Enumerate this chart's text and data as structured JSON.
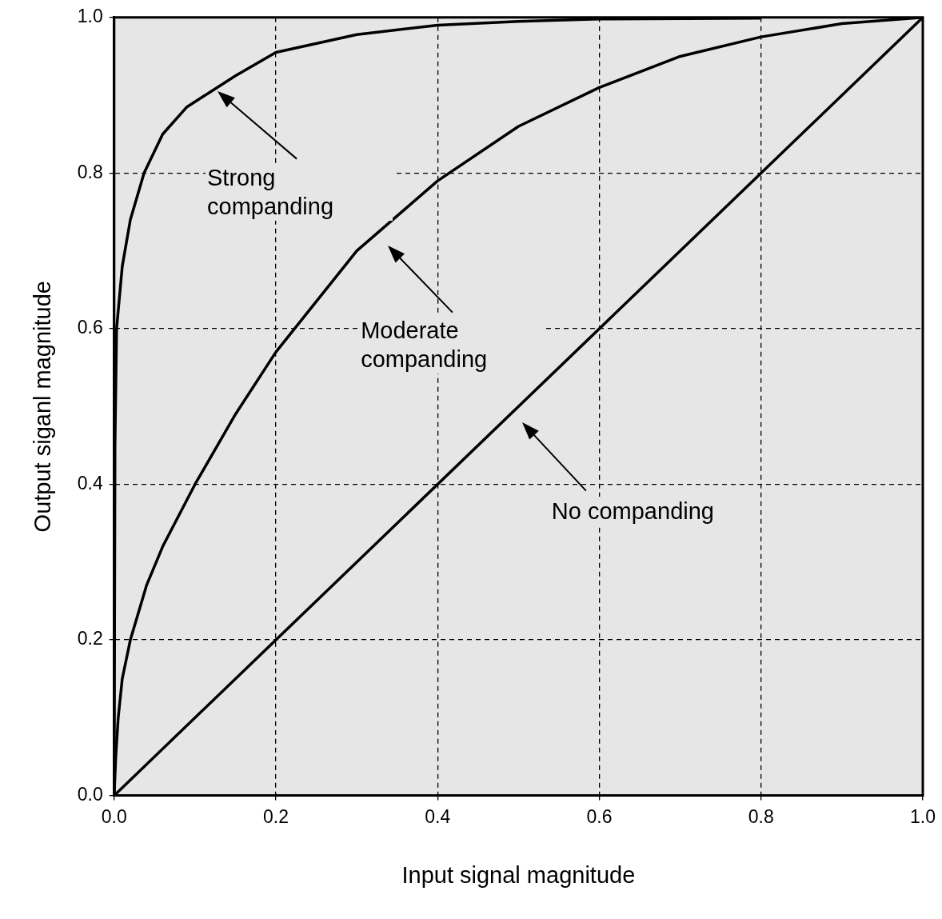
{
  "chart_data": {
    "type": "line",
    "xlabel": "Input signal magnitude",
    "ylabel": "Output siganl magnitude",
    "xlim": [
      0,
      1
    ],
    "ylim": [
      0,
      1
    ],
    "xticks": [
      {
        "value": 0,
        "label": "0.0"
      },
      {
        "value": 0.2,
        "label": "0.2"
      },
      {
        "value": 0.4,
        "label": "0.4"
      },
      {
        "value": 0.6,
        "label": "0.6"
      },
      {
        "value": 0.8,
        "label": "0.8"
      },
      {
        "value": 1,
        "label": "1.0"
      }
    ],
    "yticks": [
      {
        "value": 0,
        "label": "0.0"
      },
      {
        "value": 0.2,
        "label": "0.2"
      },
      {
        "value": 0.4,
        "label": "0.4"
      },
      {
        "value": 0.6,
        "label": "0.6"
      },
      {
        "value": 0.8,
        "label": "0.8"
      },
      {
        "value": 1,
        "label": "1.0"
      }
    ],
    "grid": true,
    "legend": false,
    "marker": "none",
    "line_style": "solid",
    "series": [
      {
        "color": "#000000",
        "x": [
          0,
          0.001,
          0.003,
          0.01,
          0.02,
          0.037,
          0.06,
          0.09,
          0.12,
          0.15,
          0.2,
          0.3,
          0.4,
          0.5,
          0.6,
          0.8
        ],
        "values": [
          0,
          0.45,
          0.6,
          0.68,
          0.74,
          0.8,
          0.85,
          0.885,
          0.905,
          0.925,
          0.955,
          0.978,
          0.99,
          0.995,
          0.998,
          0.999
        ]
      },
      {
        "color": "#000000",
        "x": [
          0,
          0.002,
          0.005,
          0.01,
          0.02,
          0.04,
          0.06,
          0.1,
          0.15,
          0.2,
          0.3,
          0.4,
          0.5,
          0.6,
          0.7,
          0.8,
          0.9,
          1
        ],
        "values": [
          0,
          0.05,
          0.1,
          0.15,
          0.2,
          0.27,
          0.32,
          0.4,
          0.49,
          0.57,
          0.7,
          0.79,
          0.86,
          0.91,
          0.95,
          0.975,
          0.992,
          1
        ]
      },
      {
        "color": "#000000",
        "x": [
          0,
          1
        ],
        "values": [
          0,
          1
        ]
      }
    ],
    "annotations": [
      "Strong companding",
      "Moderate companding",
      "No companding"
    ]
  }
}
